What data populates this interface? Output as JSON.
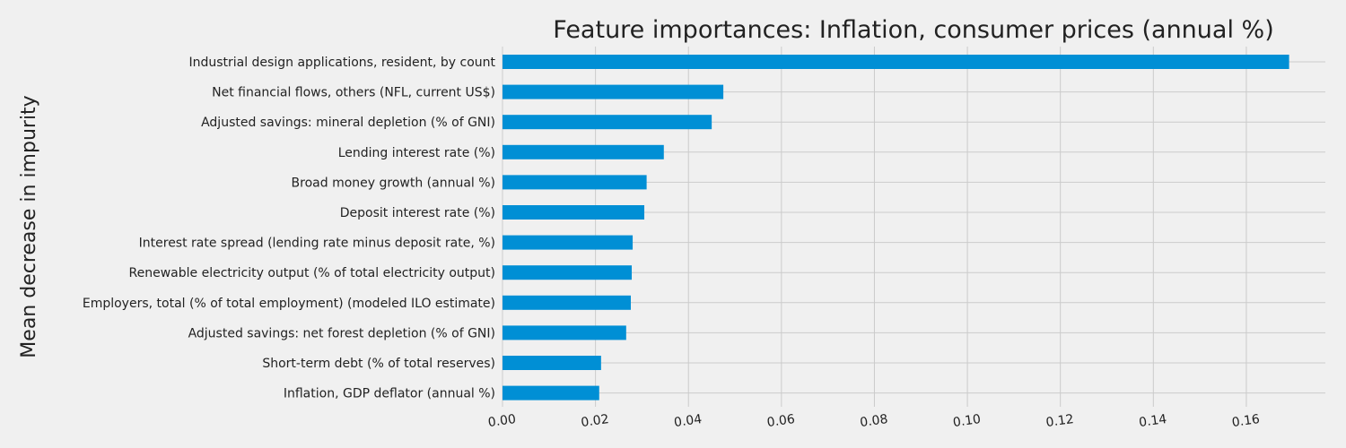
{
  "chart_data": {
    "type": "bar",
    "orientation": "horizontal",
    "title": "Feature importances: Inflation, consumer prices (annual %)",
    "xlabel": "",
    "ylabel": "Mean decrease in impurity",
    "xlim": [
      0,
      0.177
    ],
    "xticks": [
      0.0,
      0.02,
      0.04,
      0.06,
      0.08,
      0.1,
      0.12,
      0.14,
      0.16
    ],
    "xtick_labels": [
      "0.00",
      "0.02",
      "0.04",
      "0.06",
      "0.08",
      "0.10",
      "0.12",
      "0.14",
      "0.16"
    ],
    "grid": true,
    "bar_color": "#008fd5",
    "background_color": "#f0f0f0",
    "grid_color": "#cbcbcb",
    "categories": [
      "Industrial design applications, resident, by count",
      "Net financial flows, others (NFL, current US$)",
      "Adjusted savings: mineral depletion (% of GNI)",
      "Lending interest rate (%)",
      "Broad money growth (annual %)",
      "Deposit interest rate (%)",
      "Interest rate spread (lending rate minus deposit rate, %)",
      "Renewable electricity output (% of total electricity output)",
      "Employers, total (% of total employment) (modeled ILO estimate)",
      "Adjusted savings: net forest depletion (% of GNI)",
      "Short-term debt (% of total reserves)",
      "Inflation, GDP deflator (annual %)"
    ],
    "values": [
      0.1692,
      0.0475,
      0.045,
      0.0347,
      0.031,
      0.0305,
      0.028,
      0.0278,
      0.0276,
      0.0266,
      0.0212,
      0.0208
    ]
  }
}
